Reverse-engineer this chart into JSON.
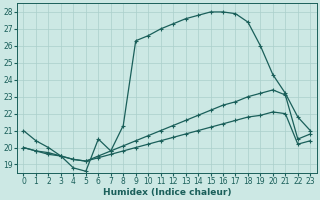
{
  "xlabel": "Humidex (Indice chaleur)",
  "background_color": "#cce8e4",
  "grid_color": "#aacfcb",
  "line_color": "#1a5f5a",
  "xlim": [
    -0.5,
    23.5
  ],
  "ylim": [
    18.5,
    28.5
  ],
  "xticks": [
    0,
    1,
    2,
    3,
    4,
    5,
    6,
    7,
    8,
    9,
    10,
    11,
    12,
    13,
    14,
    15,
    16,
    17,
    18,
    19,
    20,
    21,
    22,
    23
  ],
  "yticks": [
    19,
    20,
    21,
    22,
    23,
    24,
    25,
    26,
    27,
    28
  ],
  "curve_main": [
    21.0,
    20.4,
    20.0,
    19.5,
    18.8,
    18.6,
    20.5,
    19.8,
    21.3,
    26.3,
    26.6,
    27.0,
    27.3,
    27.6,
    27.8,
    28.0,
    28.0,
    27.9,
    27.4,
    26.0,
    24.3,
    23.2,
    21.8,
    21.0
  ],
  "curve_upper": [
    20.0,
    19.8,
    19.7,
    19.5,
    19.3,
    19.2,
    19.5,
    19.8,
    20.1,
    20.4,
    20.7,
    21.0,
    21.3,
    21.6,
    21.9,
    22.2,
    22.5,
    22.7,
    23.0,
    23.2,
    23.4,
    23.1,
    20.5,
    20.8
  ],
  "curve_lower": [
    20.0,
    19.8,
    19.6,
    19.5,
    19.3,
    19.2,
    19.4,
    19.6,
    19.8,
    20.0,
    20.2,
    20.4,
    20.6,
    20.8,
    21.0,
    21.2,
    21.4,
    21.6,
    21.8,
    21.9,
    22.1,
    22.0,
    20.2,
    20.4
  ],
  "marker_style": "+",
  "linewidth": 0.9,
  "markersize": 3.5,
  "tick_fontsize": 5.5,
  "xlabel_fontsize": 6.5
}
